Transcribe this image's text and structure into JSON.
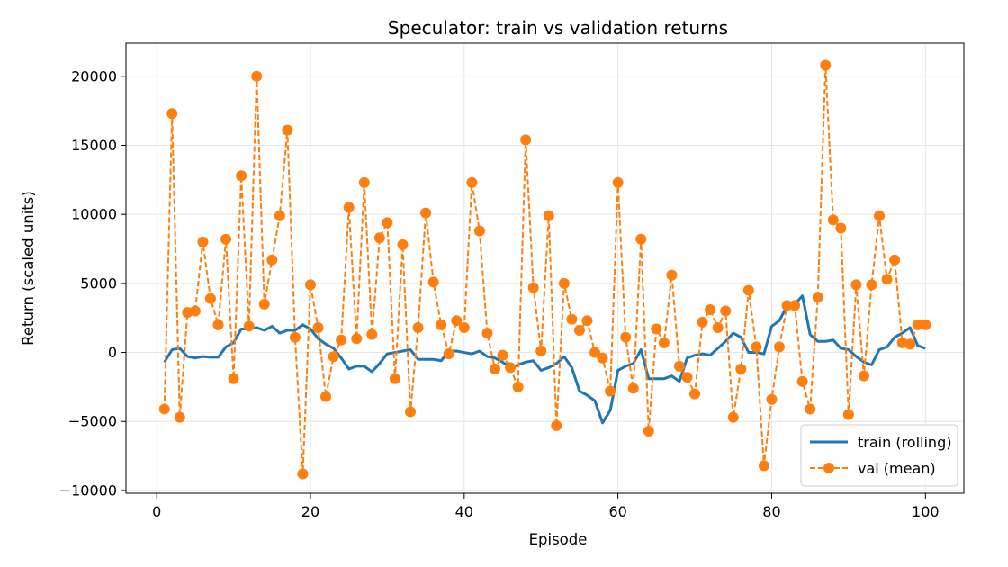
{
  "chart_data": {
    "type": "line",
    "title": "Speculator: train vs validation returns",
    "xlabel": "Episode",
    "ylabel": "Return (scaled units)",
    "xlim": [
      -4,
      105
    ],
    "ylim": [
      -10200,
      22400
    ],
    "xticks": [
      0,
      20,
      40,
      60,
      80,
      100
    ],
    "yticks": [
      -10000,
      -5000,
      0,
      5000,
      10000,
      15000,
      20000
    ],
    "grid": true,
    "legend_position": "lower-right",
    "series": [
      {
        "name": "train (rolling)",
        "color": "#1f77b4",
        "style": "solid",
        "marker": "none",
        "x": [
          1,
          2,
          3,
          4,
          5,
          6,
          7,
          8,
          9,
          10,
          11,
          12,
          13,
          14,
          15,
          16,
          17,
          18,
          19,
          20,
          21,
          22,
          23,
          24,
          25,
          26,
          27,
          28,
          29,
          30,
          31,
          32,
          33,
          34,
          35,
          36,
          37,
          38,
          39,
          40,
          41,
          42,
          43,
          44,
          45,
          46,
          47,
          48,
          49,
          50,
          51,
          52,
          53,
          54,
          55,
          56,
          57,
          58,
          59,
          60,
          61,
          62,
          63,
          64,
          65,
          66,
          67,
          68,
          69,
          70,
          71,
          72,
          73,
          74,
          75,
          76,
          77,
          78,
          79,
          80,
          81,
          82,
          83,
          84,
          85,
          86,
          87,
          88,
          89,
          90,
          91,
          92,
          93,
          94,
          95,
          96,
          97,
          98,
          99,
          100
        ],
        "y": [
          -700,
          200,
          300,
          -300,
          -400,
          -300,
          -350,
          -350,
          400,
          700,
          1700,
          1700,
          1800,
          1600,
          1900,
          1400,
          1600,
          1600,
          2000,
          1700,
          1000,
          600,
          300,
          -400,
          -1200,
          -1000,
          -1000,
          -1400,
          -800,
          -100,
          0,
          100,
          200,
          -500,
          -500,
          -500,
          -600,
          100,
          100,
          0,
          -100,
          100,
          -300,
          -400,
          -700,
          -1100,
          -900,
          -700,
          -600,
          -1300,
          -1100,
          -800,
          -300,
          -1100,
          -2800,
          -3100,
          -3500,
          -5100,
          -4200,
          -1300,
          -1000,
          -800,
          200,
          -1900,
          -1900,
          -1900,
          -1700,
          -2100,
          -400,
          -200,
          -100,
          -200,
          300,
          800,
          1400,
          1100,
          0,
          0,
          -100,
          1900,
          2300,
          3400,
          3500,
          4100,
          1300,
          800,
          800,
          900,
          300,
          200,
          -300,
          -700,
          -900,
          200,
          400,
          1100,
          1400,
          1800,
          500,
          300
        ]
      },
      {
        "name": "val (mean)",
        "color": "#ff7f0e",
        "style": "dashed",
        "marker": "circle",
        "x": [
          1,
          2,
          3,
          4,
          5,
          6,
          7,
          8,
          9,
          10,
          11,
          12,
          13,
          14,
          15,
          16,
          17,
          18,
          19,
          20,
          21,
          22,
          23,
          24,
          25,
          26,
          27,
          28,
          29,
          30,
          31,
          32,
          33,
          34,
          35,
          36,
          37,
          38,
          39,
          40,
          41,
          42,
          43,
          44,
          45,
          46,
          47,
          48,
          49,
          50,
          51,
          52,
          53,
          54,
          55,
          56,
          57,
          58,
          59,
          60,
          61,
          62,
          63,
          64,
          65,
          66,
          67,
          68,
          69,
          70,
          71,
          72,
          73,
          74,
          75,
          76,
          77,
          78,
          79,
          80,
          81,
          82,
          83,
          84,
          85,
          86,
          87,
          88,
          89,
          90,
          91,
          92,
          93,
          94,
          95,
          96,
          97,
          98,
          99,
          100
        ],
        "y": [
          -4100,
          17300,
          -4700,
          2900,
          3000,
          8000,
          3900,
          2000,
          8200,
          -1900,
          12800,
          1900,
          20000,
          3500,
          6700,
          9900,
          16100,
          1100,
          -8800,
          4900,
          1800,
          -3200,
          -300,
          900,
          10500,
          1000,
          12300,
          1300,
          8300,
          9400,
          -1900,
          7800,
          -4300,
          1800,
          10100,
          5100,
          2000,
          -100,
          2300,
          1800,
          12300,
          8800,
          1400,
          -1200,
          -200,
          -1100,
          -2500,
          15400,
          4700,
          100,
          9900,
          -5300,
          5000,
          2400,
          1600,
          2300,
          0,
          -400,
          -2800,
          12300,
          1100,
          -2600,
          8200,
          -5700,
          1700,
          700,
          5600,
          -1000,
          -1800,
          -3000,
          2200,
          3100,
          1800,
          3000,
          -4700,
          -1200,
          4500,
          400,
          -8200,
          -3400,
          400,
          3400,
          3400,
          -2100,
          -4100,
          4000,
          20800,
          9600,
          9000,
          -4500,
          4900,
          -1700,
          4900,
          9900,
          5300,
          6700,
          700,
          600,
          2000,
          2000
        ]
      }
    ]
  }
}
